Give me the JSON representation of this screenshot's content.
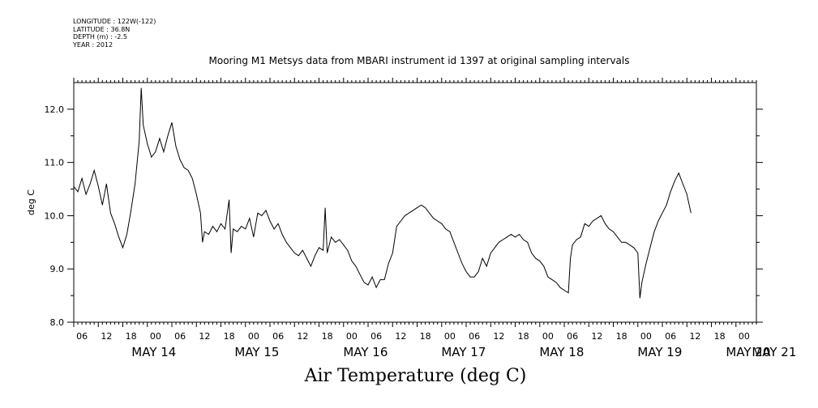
{
  "meta": {
    "longitude": "LONGITUDE : 122W(-122)",
    "latitude": "LATITUDE : 36.8N",
    "depth": "DEPTH (m) : -2.5",
    "year": "YEAR : 2012"
  },
  "chart_data": {
    "type": "line",
    "title": "Mooring M1 Metsys data from MBARI instrument id 1397 at original sampling intervals",
    "xlabel": "Air Temperature (deg C)",
    "ylabel": "deg C",
    "ylim": [
      8.0,
      12.5
    ],
    "yticks": [
      "8.0",
      "9.0",
      "10.0",
      "11.0",
      "12.0"
    ],
    "xlim_hours": [
      0,
      167
    ],
    "hour_ticks": [
      "06",
      "12",
      "18",
      "00",
      "06",
      "12",
      "18",
      "00",
      "06",
      "12",
      "18",
      "00",
      "06",
      "12",
      "18",
      "00",
      "06",
      "12",
      "18",
      "00",
      "06",
      "12",
      "18",
      "00",
      "06",
      "12",
      "18",
      "00",
      "06",
      "12",
      "18",
      "00"
    ],
    "day_labels": [
      "MAY 14",
      "MAY 15",
      "MAY 16",
      "MAY 17",
      "MAY 18",
      "MAY 19",
      "MAY 20",
      "MAY 21"
    ],
    "grid": false,
    "series": [
      {
        "values": [
          [
            0,
            10.55
          ],
          [
            1,
            10.45
          ],
          [
            2,
            10.7
          ],
          [
            3,
            10.4
          ],
          [
            4,
            10.6
          ],
          [
            5,
            10.85
          ],
          [
            6,
            10.55
          ],
          [
            7,
            10.2
          ],
          [
            8,
            10.6
          ],
          [
            9,
            10.05
          ],
          [
            10,
            9.85
          ],
          [
            11,
            9.6
          ],
          [
            12,
            9.4
          ],
          [
            13,
            9.65
          ],
          [
            14,
            10.1
          ],
          [
            15,
            10.6
          ],
          [
            16,
            11.4
          ],
          [
            16.5,
            12.4
          ],
          [
            17,
            11.7
          ],
          [
            18,
            11.35
          ],
          [
            19,
            11.1
          ],
          [
            20,
            11.2
          ],
          [
            21,
            11.45
          ],
          [
            22,
            11.2
          ],
          [
            23,
            11.5
          ],
          [
            24,
            11.75
          ],
          [
            25,
            11.3
          ],
          [
            26,
            11.05
          ],
          [
            27,
            10.9
          ],
          [
            28,
            10.85
          ],
          [
            29,
            10.7
          ],
          [
            30,
            10.4
          ],
          [
            31,
            10.05
          ],
          [
            31.5,
            9.5
          ],
          [
            32,
            9.7
          ],
          [
            33,
            9.65
          ],
          [
            34,
            9.8
          ],
          [
            35,
            9.7
          ],
          [
            36,
            9.85
          ],
          [
            37,
            9.75
          ],
          [
            38,
            10.3
          ],
          [
            38.5,
            9.3
          ],
          [
            39,
            9.75
          ],
          [
            40,
            9.7
          ],
          [
            41,
            9.8
          ],
          [
            42,
            9.75
          ],
          [
            43,
            9.95
          ],
          [
            44,
            9.6
          ],
          [
            45,
            10.05
          ],
          [
            46,
            10.0
          ],
          [
            47,
            10.1
          ],
          [
            48,
            9.9
          ],
          [
            49,
            9.75
          ],
          [
            50,
            9.85
          ],
          [
            51,
            9.65
          ],
          [
            52,
            9.5
          ],
          [
            53,
            9.4
          ],
          [
            54,
            9.3
          ],
          [
            55,
            9.25
          ],
          [
            56,
            9.35
          ],
          [
            57,
            9.2
          ],
          [
            58,
            9.05
          ],
          [
            59,
            9.25
          ],
          [
            60,
            9.4
          ],
          [
            61,
            9.35
          ],
          [
            61.5,
            10.15
          ],
          [
            62,
            9.3
          ],
          [
            63,
            9.6
          ],
          [
            64,
            9.5
          ],
          [
            65,
            9.55
          ],
          [
            66,
            9.45
          ],
          [
            67,
            9.35
          ],
          [
            68,
            9.15
          ],
          [
            69,
            9.05
          ],
          [
            70,
            8.9
          ],
          [
            71,
            8.75
          ],
          [
            72,
            8.7
          ],
          [
            73,
            8.85
          ],
          [
            74,
            8.65
          ],
          [
            75,
            8.8
          ],
          [
            76,
            8.8
          ],
          [
            77,
            9.1
          ],
          [
            78,
            9.3
          ],
          [
            79,
            9.8
          ],
          [
            80,
            9.9
          ],
          [
            81,
            10.0
          ],
          [
            82,
            10.05
          ],
          [
            83,
            10.1
          ],
          [
            84,
            10.15
          ],
          [
            85,
            10.2
          ],
          [
            86,
            10.15
          ],
          [
            87,
            10.05
          ],
          [
            88,
            9.95
          ],
          [
            89,
            9.9
          ],
          [
            90,
            9.85
          ],
          [
            91,
            9.75
          ],
          [
            92,
            9.7
          ],
          [
            93,
            9.5
          ],
          [
            94,
            9.3
          ],
          [
            95,
            9.1
          ],
          [
            96,
            8.95
          ],
          [
            97,
            8.85
          ],
          [
            98,
            8.85
          ],
          [
            99,
            8.95
          ],
          [
            100,
            9.2
          ],
          [
            101,
            9.05
          ],
          [
            102,
            9.3
          ],
          [
            103,
            9.4
          ],
          [
            104,
            9.5
          ],
          [
            105,
            9.55
          ],
          [
            106,
            9.6
          ],
          [
            107,
            9.65
          ],
          [
            108,
            9.6
          ],
          [
            109,
            9.65
          ],
          [
            110,
            9.55
          ],
          [
            111,
            9.5
          ],
          [
            112,
            9.3
          ],
          [
            113,
            9.2
          ],
          [
            114,
            9.15
          ],
          [
            115,
            9.05
          ],
          [
            116,
            8.85
          ],
          [
            117,
            8.8
          ],
          [
            118,
            8.75
          ],
          [
            119,
            8.65
          ],
          [
            120,
            8.6
          ],
          [
            121,
            8.55
          ],
          [
            121.5,
            9.2
          ],
          [
            122,
            9.45
          ],
          [
            123,
            9.55
          ],
          [
            124,
            9.6
          ],
          [
            125,
            9.85
          ],
          [
            126,
            9.8
          ],
          [
            127,
            9.9
          ],
          [
            128,
            9.95
          ],
          [
            129,
            10.0
          ],
          [
            130,
            9.85
          ],
          [
            131,
            9.75
          ],
          [
            132,
            9.7
          ],
          [
            133,
            9.6
          ],
          [
            134,
            9.5
          ],
          [
            135,
            9.5
          ],
          [
            136,
            9.45
          ],
          [
            137,
            9.4
          ],
          [
            138,
            9.3
          ],
          [
            138.5,
            8.45
          ],
          [
            139,
            8.75
          ],
          [
            140,
            9.1
          ],
          [
            141,
            9.4
          ],
          [
            142,
            9.7
          ],
          [
            143,
            9.9
          ],
          [
            144,
            10.05
          ],
          [
            145,
            10.2
          ],
          [
            146,
            10.45
          ],
          [
            147,
            10.65
          ],
          [
            148,
            10.8
          ],
          [
            149,
            10.6
          ],
          [
            150,
            10.4
          ],
          [
            151,
            10.05
          ]
        ]
      }
    ]
  }
}
